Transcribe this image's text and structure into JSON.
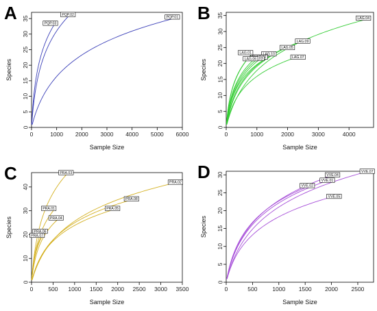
{
  "chart_data": [
    {
      "type": "line",
      "panel": "A",
      "xlabel": "Sample Size",
      "ylabel": "Species",
      "xlim": [
        0,
        6000
      ],
      "ylim": [
        0,
        37
      ],
      "xticks": [
        0,
        1000,
        2000,
        3000,
        4000,
        5000,
        6000
      ],
      "yticks": [
        0,
        5,
        10,
        15,
        20,
        25,
        30,
        35
      ],
      "color": "#3a3fb8",
      "series": [
        {
          "name": "PQP.01",
          "max_x": 5900,
          "max_y": 35.5
        },
        {
          "name": "PQP.02",
          "max_x": 1500,
          "max_y": 36
        },
        {
          "name": "PQP.03",
          "max_x": 900,
          "max_y": 33
        }
      ]
    },
    {
      "type": "line",
      "panel": "B",
      "xlabel": "Sample Size",
      "ylabel": "Species",
      "xlim": [
        0,
        4800
      ],
      "ylim": [
        0,
        36
      ],
      "xticks": [
        0,
        1000,
        2000,
        3000,
        4000
      ],
      "yticks": [
        0,
        5,
        10,
        15,
        20,
        25,
        30,
        35
      ],
      "color": "#33cc33",
      "series": [
        {
          "name": "LAG.04",
          "max_x": 4650,
          "max_y": 34
        },
        {
          "name": "LAG.09",
          "max_x": 2450,
          "max_y": 27
        },
        {
          "name": "LAG.05",
          "max_x": 1950,
          "max_y": 25
        },
        {
          "name": "LAG.10",
          "max_x": 1350,
          "max_y": 23
        },
        {
          "name": "LAG.07",
          "max_x": 2300,
          "max_y": 22
        },
        {
          "name": "LAG.08",
          "max_x": 1000,
          "max_y": 22
        },
        {
          "name": "LAG.01",
          "max_x": 850,
          "max_y": 23
        },
        {
          "name": "LAG.02",
          "max_x": 1100,
          "max_y": 22
        },
        {
          "name": "LAG.03",
          "max_x": 1200,
          "max_y": 21
        },
        {
          "name": "LAG.06",
          "max_x": 750,
          "max_y": 22
        }
      ]
    },
    {
      "type": "line",
      "panel": "C",
      "xlabel": "Sample Size",
      "ylabel": "Species",
      "xlim": [
        0,
        3500
      ],
      "ylim": [
        0,
        46
      ],
      "xticks": [
        0,
        500,
        1000,
        1500,
        2000,
        2500,
        3000,
        3500
      ],
      "yticks": [
        0,
        10,
        20,
        30,
        40
      ],
      "color": "#d4b020",
      "series": [
        {
          "name": "PRA.02",
          "max_x": 3400,
          "max_y": 42
        },
        {
          "name": "PRA.03",
          "max_x": 850,
          "max_y": 46
        },
        {
          "name": "PRA.08",
          "max_x": 2400,
          "max_y": 35
        },
        {
          "name": "PRA.05",
          "max_x": 2000,
          "max_y": 31
        },
        {
          "name": "PRA.04",
          "max_x": 650,
          "max_y": 27
        },
        {
          "name": "PRA.01",
          "max_x": 550,
          "max_y": 31
        },
        {
          "name": "PRA.06",
          "max_x": 300,
          "max_y": 21
        },
        {
          "name": "PRA.07",
          "max_x": 250,
          "max_y": 20
        }
      ]
    },
    {
      "type": "line",
      "panel": "D",
      "xlabel": "Sample Size",
      "ylabel": "Species",
      "xlim": [
        0,
        2800
      ],
      "ylim": [
        0,
        31
      ],
      "xticks": [
        0,
        500,
        1000,
        1500,
        2000,
        2500
      ],
      "yticks": [
        0,
        5,
        10,
        15,
        20,
        25,
        30
      ],
      "color": "#a64ed8",
      "series": [
        {
          "name": "VVE.07",
          "max_x": 2700,
          "max_y": 31
        },
        {
          "name": "VVE.04",
          "max_x": 2050,
          "max_y": 30
        },
        {
          "name": "VVE.01",
          "max_x": 1950,
          "max_y": 28.5
        },
        {
          "name": "VVE.02",
          "max_x": 1600,
          "max_y": 27
        },
        {
          "name": "VVE.05",
          "max_x": 2050,
          "max_y": 24
        }
      ]
    }
  ]
}
